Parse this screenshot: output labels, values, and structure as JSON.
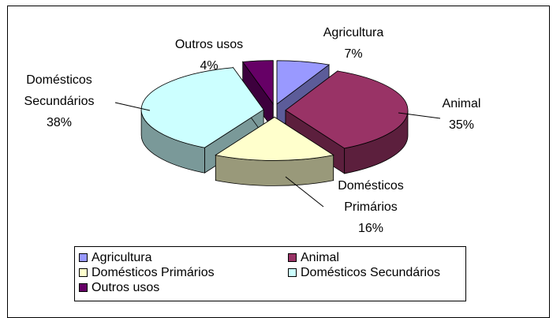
{
  "chart_data": {
    "type": "pie3d",
    "categories": [
      "Agricultura",
      "Animal",
      "Domésticos Primários",
      "Domésticos Secundários",
      "Outros usos"
    ],
    "values": [
      7,
      35,
      16,
      38,
      4
    ],
    "value_labels": [
      "7%",
      "35%",
      "16%",
      "38%",
      "4%"
    ],
    "colors": [
      "#9999ff",
      "#993366",
      "#ffffcc",
      "#ccffff",
      "#660066"
    ],
    "legend": "bottom"
  }
}
